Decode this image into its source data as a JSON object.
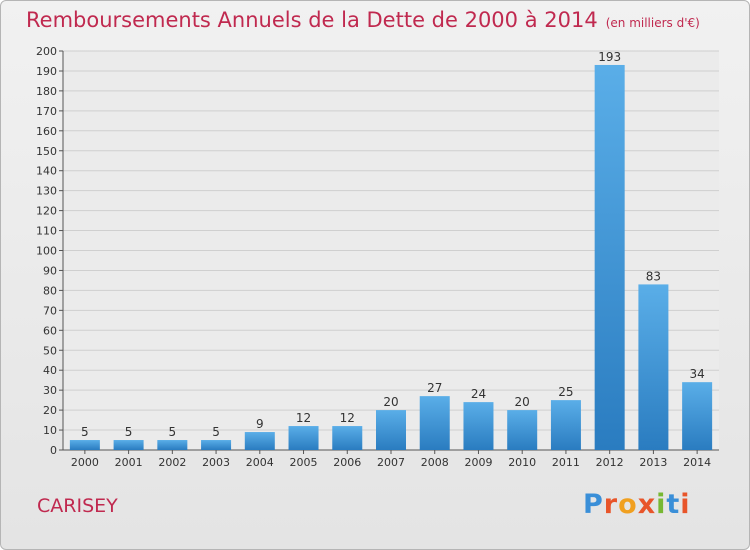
{
  "header": {
    "title": "Remboursements Annuels de la Dette de 2000 à 2014",
    "unit": "(en milliers d'€)"
  },
  "footer": {
    "place": "CARISEY",
    "logo_text": "Proxiti"
  },
  "colors": {
    "title": "#c0294f",
    "bar_light": "#5aaee8",
    "bar_dark": "#2a7cc0",
    "grid": "#cfcfcf"
  },
  "chart_data": {
    "type": "bar",
    "title": "Remboursements Annuels de la Dette de 2000 à 2014",
    "xlabel": "",
    "ylabel": "",
    "categories": [
      "2000",
      "2001",
      "2002",
      "2003",
      "2004",
      "2005",
      "2006",
      "2007",
      "2008",
      "2009",
      "2010",
      "2011",
      "2012",
      "2013",
      "2014"
    ],
    "values": [
      5,
      5,
      5,
      5,
      9,
      12,
      12,
      20,
      27,
      24,
      20,
      25,
      193,
      83,
      34
    ],
    "ylim": [
      0,
      200
    ],
    "ytick_step": 10,
    "grid": true,
    "data_labels": true
  }
}
